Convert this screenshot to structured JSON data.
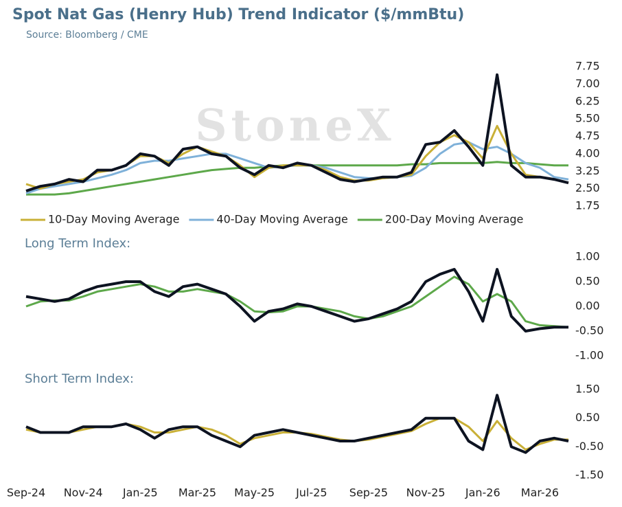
{
  "chart_data": [
    {
      "type": "line",
      "title": "Spot Nat Gas (Henry Hub) Trend Indicator ($/mmBtu)",
      "subtitle": "Source: Bloomberg / CME",
      "watermark": "StoneX",
      "legend": "bottom",
      "ylim": [
        1.75,
        7.75
      ],
      "yticks": [
        1.75,
        {
          "value": 2.5,
          "label": "2.50"
        },
        3.25,
        {
          "value": 4,
          "label": "4.00"
        },
        4.75,
        {
          "value": 5.5,
          "label": "5.50"
        },
        6.25,
        {
          "value": 7,
          "label": "7.00"
        },
        7.75
      ],
      "series": [
        {
          "color": "#0d1321",
          "values": [
            2.4,
            2.6,
            2.7,
            2.9,
            2.8,
            3.3,
            3.3,
            3.5,
            4.0,
            3.9,
            3.5,
            4.2,
            4.3,
            4.0,
            3.9,
            3.4,
            3.1,
            3.5,
            3.4,
            3.6,
            3.5,
            3.2,
            2.9,
            2.8,
            2.9,
            3.0,
            3.0,
            3.2,
            4.4,
            4.5,
            5.0,
            4.3,
            3.5,
            7.4,
            3.5,
            3.0,
            3.0,
            2.9,
            2.75
          ]
        },
        {
          "name": "10-Day Moving Average",
          "color": "#c9b037",
          "values": [
            2.7,
            2.5,
            2.7,
            2.8,
            2.9,
            3.2,
            3.3,
            3.5,
            3.9,
            3.9,
            3.6,
            4.0,
            4.3,
            4.1,
            3.9,
            3.5,
            3.0,
            3.4,
            3.5,
            3.5,
            3.5,
            3.3,
            3.0,
            2.85,
            2.85,
            2.95,
            3.0,
            3.1,
            3.9,
            4.5,
            4.8,
            4.5,
            3.8,
            5.2,
            4.0,
            3.1,
            3.0,
            2.9,
            2.75
          ]
        },
        {
          "name": "40-Day Moving Average",
          "color": "#7fb1d9",
          "values": [
            2.3,
            2.5,
            2.6,
            2.7,
            2.8,
            2.95,
            3.1,
            3.3,
            3.6,
            3.7,
            3.7,
            3.8,
            3.9,
            4.0,
            4.0,
            3.8,
            3.6,
            3.4,
            3.45,
            3.5,
            3.5,
            3.4,
            3.2,
            3.0,
            2.95,
            2.95,
            3.0,
            3.05,
            3.4,
            4.0,
            4.4,
            4.5,
            4.2,
            4.3,
            4.0,
            3.6,
            3.4,
            3.0,
            2.9
          ]
        },
        {
          "name": "200-Day Moving Average",
          "color": "#5da84a",
          "values": [
            2.25,
            2.25,
            2.25,
            2.3,
            2.4,
            2.5,
            2.6,
            2.7,
            2.8,
            2.9,
            3.0,
            3.1,
            3.2,
            3.3,
            3.35,
            3.4,
            3.4,
            3.45,
            3.5,
            3.5,
            3.5,
            3.5,
            3.5,
            3.5,
            3.5,
            3.5,
            3.5,
            3.55,
            3.55,
            3.6,
            3.6,
            3.6,
            3.6,
            3.65,
            3.6,
            3.6,
            3.55,
            3.5,
            3.5
          ]
        }
      ]
    },
    {
      "type": "line",
      "title": "Long Term Index:",
      "ylim": [
        -1,
        1
      ],
      "yticks": [
        {
          "value": -1,
          "label": "-1.00"
        },
        {
          "value": -0.5,
          "label": "-0.50"
        },
        {
          "value": 0,
          "label": "0.00"
        },
        {
          "value": 0.5,
          "label": "0.50"
        },
        {
          "value": 1,
          "label": "1.00"
        }
      ],
      "series": [
        {
          "color": "#0d1321",
          "values": [
            0.2,
            0.15,
            0.1,
            0.15,
            0.3,
            0.4,
            0.45,
            0.5,
            0.5,
            0.3,
            0.2,
            0.4,
            0.45,
            0.35,
            0.25,
            0.0,
            -0.3,
            -0.1,
            -0.05,
            0.05,
            0.0,
            -0.1,
            -0.2,
            -0.3,
            -0.25,
            -0.15,
            -0.05,
            0.1,
            0.5,
            0.65,
            0.75,
            0.3,
            -0.3,
            0.75,
            -0.2,
            -0.5,
            -0.45,
            -0.42,
            -0.42
          ]
        },
        {
          "color": "#5da84a",
          "values": [
            0.0,
            0.1,
            0.12,
            0.12,
            0.2,
            0.3,
            0.35,
            0.4,
            0.45,
            0.4,
            0.3,
            0.3,
            0.35,
            0.3,
            0.25,
            0.1,
            -0.1,
            -0.12,
            -0.1,
            0.0,
            0.0,
            -0.05,
            -0.1,
            -0.2,
            -0.25,
            -0.2,
            -0.1,
            0.0,
            0.2,
            0.4,
            0.6,
            0.45,
            0.1,
            0.25,
            0.1,
            -0.3,
            -0.38,
            -0.4,
            -0.42
          ]
        }
      ]
    },
    {
      "type": "line",
      "title": "Short Term Index:",
      "ylim": [
        -1.5,
        1.5
      ],
      "yticks": [
        {
          "value": -1.5,
          "label": "-1.50"
        },
        {
          "value": -0.5,
          "label": "-0.50"
        },
        {
          "value": 0.5,
          "label": "0.50"
        },
        {
          "value": 1.5,
          "label": "1.50"
        }
      ],
      "categories": [
        "Sep-24",
        null,
        null,
        null,
        "Nov-24",
        null,
        null,
        null,
        "Jan-25",
        null,
        null,
        null,
        "Mar-25",
        null,
        null,
        null,
        "May-25",
        null,
        null,
        null,
        "Jul-25",
        null,
        null,
        null,
        "Sep-25",
        null,
        null,
        null,
        "Nov-25",
        null,
        null,
        null,
        "Jan-26",
        null,
        null,
        null,
        "Mar-26",
        null,
        null
      ],
      "series": [
        {
          "color": "#0d1321",
          "values": [
            0.2,
            0.0,
            0.0,
            0.0,
            0.2,
            0.2,
            0.2,
            0.3,
            0.1,
            -0.2,
            0.1,
            0.2,
            0.2,
            -0.1,
            -0.3,
            -0.5,
            -0.1,
            0.0,
            0.1,
            0.0,
            -0.1,
            -0.2,
            -0.3,
            -0.3,
            -0.2,
            -0.1,
            0.0,
            0.1,
            0.5,
            0.5,
            0.5,
            -0.3,
            -0.6,
            1.3,
            -0.5,
            -0.7,
            -0.3,
            -0.2,
            -0.3
          ]
        },
        {
          "color": "#c9b037",
          "values": [
            0.1,
            0.0,
            0.0,
            0.0,
            0.1,
            0.2,
            0.2,
            0.3,
            0.2,
            0.0,
            0.0,
            0.1,
            0.2,
            0.1,
            -0.1,
            -0.4,
            -0.2,
            -0.1,
            0.0,
            0.0,
            -0.05,
            -0.15,
            -0.25,
            -0.3,
            -0.25,
            -0.15,
            -0.05,
            0.05,
            0.3,
            0.5,
            0.5,
            0.2,
            -0.3,
            0.4,
            -0.2,
            -0.6,
            -0.4,
            -0.25,
            -0.25
          ]
        }
      ]
    }
  ]
}
